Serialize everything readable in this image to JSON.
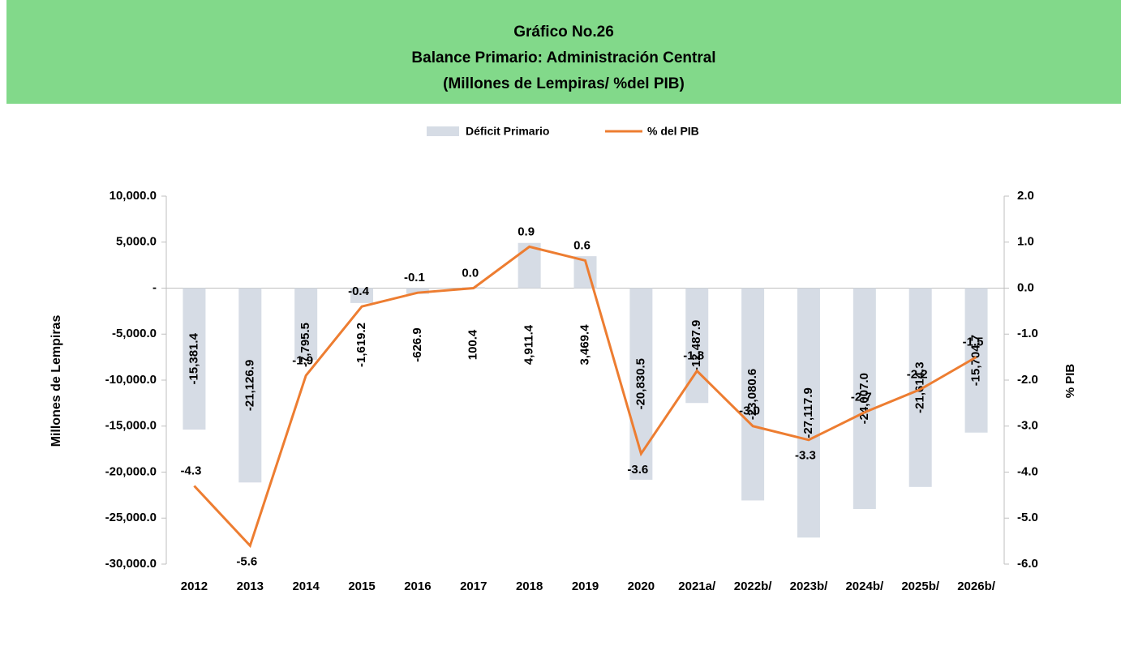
{
  "chart_data": {
    "type": "bar_line",
    "title": [
      "Gráfico No.26",
      "Balance Primario: Administración Central",
      "(Millones de Lempiras/ %del PIB)"
    ],
    "y_label": "Millones de Lempiras",
    "y2_label": "% PIB",
    "categories": [
      "2012",
      "2013",
      "2014",
      "2015",
      "2016",
      "2017",
      "2018",
      "2019",
      "2020",
      "2021a/",
      "2022b/",
      "2023b/",
      "2024b/",
      "2025b/",
      "2026b/"
    ],
    "series": [
      {
        "name": "Déficit Primario",
        "type": "bar",
        "color": "#d6dce5",
        "values": [
          -15381.4,
          -21126.9,
          -7795.5,
          -1619.2,
          -626.9,
          100.4,
          4911.4,
          3469.4,
          -20830.5,
          -12487.9,
          -23080.6,
          -27117.9,
          -24007.0,
          -21614.3,
          -15704.7
        ],
        "value_labels": [
          "-15,381.4",
          "-21,126.9",
          "-7,795.5",
          "-1,619.2",
          "-626.9",
          "100.4",
          "4,911.4",
          "3,469.4",
          "-20,830.5",
          "-12,487.9",
          "-23,080.6",
          "-27,117.9",
          "-24,007.0",
          "-21,614.3",
          "-15,704.7"
        ]
      },
      {
        "name": "% del PIB",
        "type": "line",
        "axis": "y2",
        "color": "#ed7d31",
        "values": [
          -4.3,
          -5.6,
          -1.9,
          -0.4,
          -0.1,
          0.0,
          0.9,
          0.6,
          -3.6,
          -1.8,
          -3.0,
          -3.3,
          -2.7,
          -2.2,
          -1.5
        ],
        "value_labels": [
          "-4.3",
          "-5.6",
          "-1.9",
          "-0.4",
          "-0.1",
          "0.0",
          "0.9",
          "0.6",
          "-3.6",
          "-1.8",
          "-3.0",
          "-3.3",
          "-2.7",
          "-2.2",
          "-1.5"
        ]
      }
    ],
    "ylim": [
      -30000,
      10000
    ],
    "yticks": [
      {
        "value": -30000,
        "label": "-30,000.0"
      },
      {
        "value": -25000,
        "label": "-25,000.0"
      },
      {
        "value": -20000,
        "label": "-20,000.0"
      },
      {
        "value": -15000,
        "label": "-15,000.0"
      },
      {
        "value": -10000,
        "label": "-10,000.0"
      },
      {
        "value": -5000,
        "label": "-5,000.0"
      },
      {
        "value": 0,
        "label": "-"
      },
      {
        "value": 5000,
        "label": "5,000.0"
      },
      {
        "value": 10000,
        "label": "10,000.0"
      }
    ],
    "y2lim": [
      -6,
      2
    ],
    "y2ticks": [
      {
        "value": -6,
        "label": "-6.0"
      },
      {
        "value": -5,
        "label": "-5.0"
      },
      {
        "value": -4,
        "label": "-4.0"
      },
      {
        "value": -3,
        "label": "-3.0"
      },
      {
        "value": -2,
        "label": "-2.0"
      },
      {
        "value": -1,
        "label": "-1.0"
      },
      {
        "value": 0,
        "label": "0.0"
      },
      {
        "value": 1,
        "label": "1.0"
      },
      {
        "value": 2,
        "label": "2.0"
      }
    ],
    "legend": "top"
  }
}
